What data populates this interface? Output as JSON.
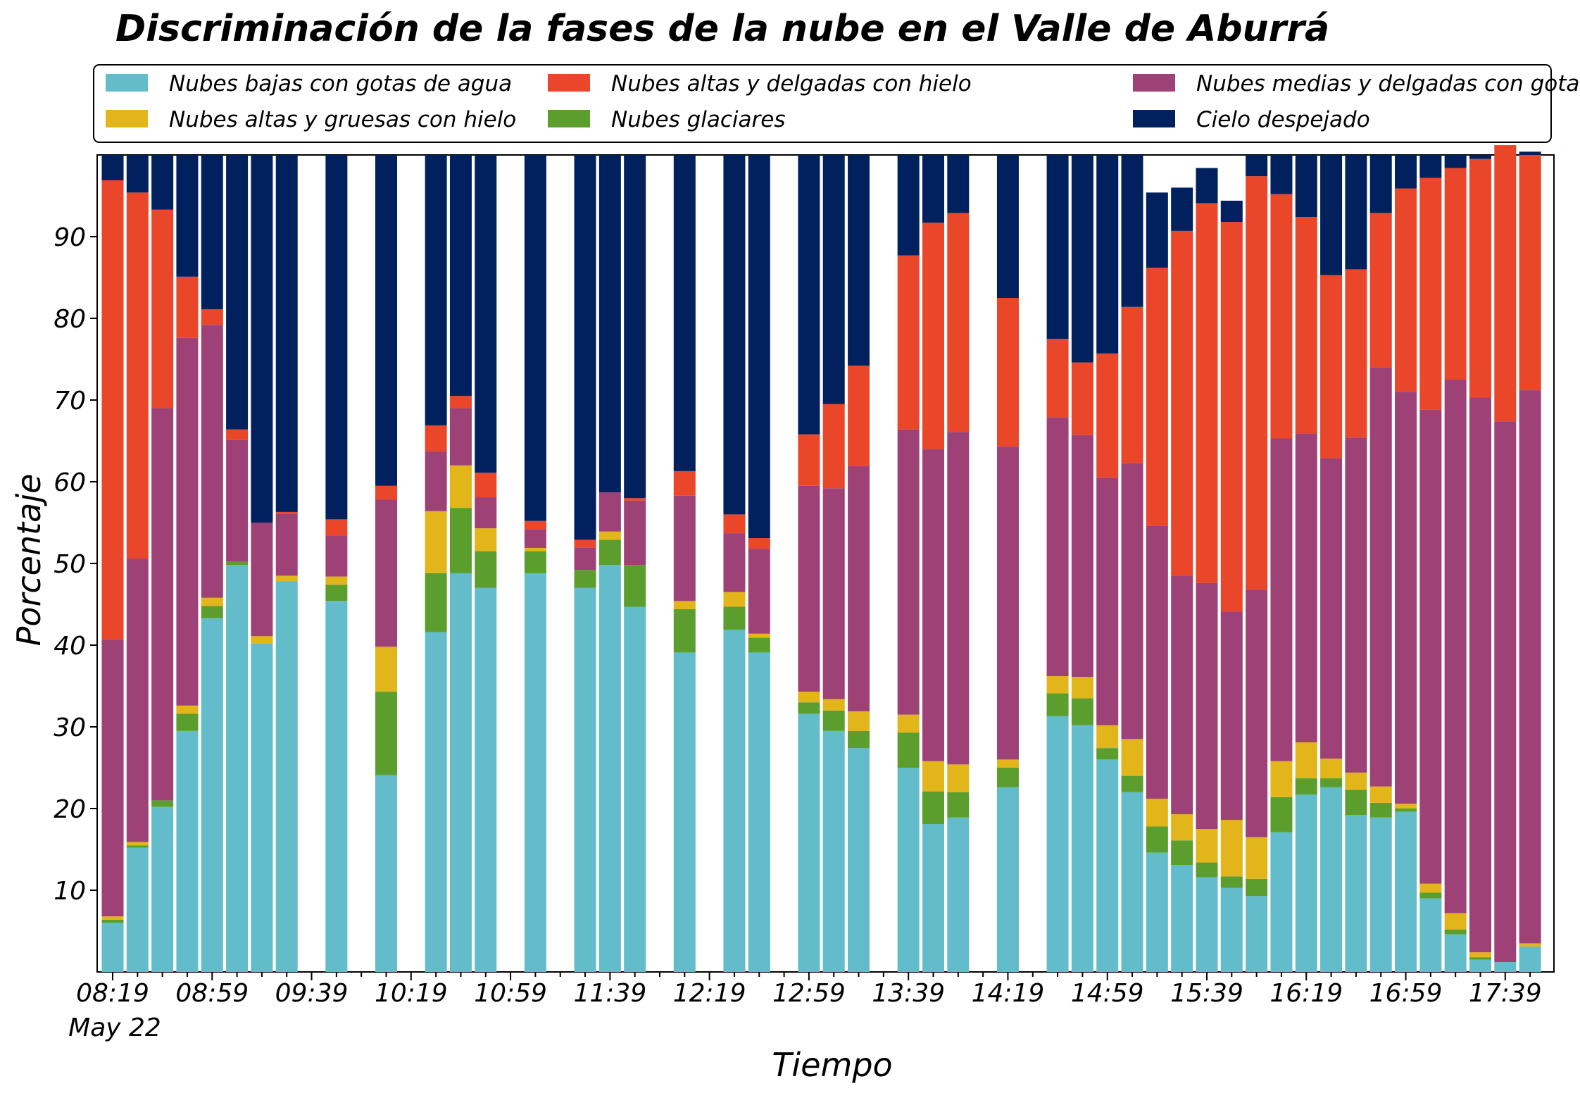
{
  "chart_data": {
    "type": "bar",
    "stacked": true,
    "title": "Discriminación de la fases de la nube en el Valle de Aburrá",
    "xlabel": "Tiempo",
    "ylabel": "Porcentaje",
    "ylim": [
      0,
      100
    ],
    "y_ticks": [
      10,
      20,
      30,
      40,
      50,
      60,
      70,
      80,
      90
    ],
    "x_tick_labels": [
      "08:19",
      "08:59",
      "09:39",
      "10:19",
      "10:59",
      "11:39",
      "12:19",
      "12:59",
      "13:39",
      "14:19",
      "14:59",
      "15:39",
      "16:19",
      "16:59",
      "17:39"
    ],
    "x_date_label": "May 22",
    "x_axis_start": "08:19",
    "bar_interval_minutes": 10,
    "grid": false,
    "legend_position": "top",
    "legend_order": [
      0,
      2,
      4,
      1,
      3,
      5
    ],
    "times": [
      "08:19",
      "08:29",
      "08:39",
      "08:49",
      "08:59",
      "09:09",
      "09:19",
      "09:29",
      "09:49",
      "10:09",
      "10:29",
      "10:39",
      "10:49",
      "11:09",
      "11:29",
      "11:39",
      "11:49",
      "12:09",
      "12:29",
      "12:39",
      "12:59",
      "13:09",
      "13:19",
      "13:39",
      "13:49",
      "13:59",
      "14:19",
      "14:39",
      "14:49",
      "14:59",
      "15:09",
      "15:19",
      "15:29",
      "15:39",
      "15:49",
      "15:59",
      "16:09",
      "16:19",
      "16:29",
      "16:39",
      "16:49",
      "16:59",
      "17:09",
      "17:19",
      "17:29",
      "17:39",
      "17:49"
    ],
    "series": [
      {
        "name": "Nubes bajas con gotas de agua",
        "color": "#63bcc9",
        "values": [
          6,
          15.2,
          20.2,
          29.5,
          43.3,
          49.8,
          40.2,
          47.8,
          45.4,
          24.1,
          41.6,
          48.8,
          47,
          48.8,
          47,
          49.8,
          44.7,
          39.1,
          41.9,
          39.1,
          31.6,
          29.5,
          27.4,
          25,
          18.1,
          18.9,
          22.6,
          31.3,
          30.2,
          26,
          22,
          14.6,
          13.1,
          11.6,
          10.3,
          9.3,
          17.1,
          21.7,
          22.6,
          19.2,
          18.9,
          19.6,
          9,
          4.6,
          1.5,
          1.2,
          3.1
        ]
      },
      {
        "name": "Nubes glaciares",
        "color": "#5b9e2e",
        "values": [
          0.4,
          0.3,
          0.8,
          2.1,
          1.5,
          0.4,
          0,
          0,
          2,
          10.2,
          7.2,
          8,
          4.5,
          2.7,
          2.2,
          3.1,
          5.1,
          5.3,
          2.8,
          1.8,
          1.4,
          2.5,
          2.1,
          4.3,
          4,
          3.1,
          2.4,
          2.8,
          3.3,
          1.4,
          2,
          3.2,
          3,
          1.8,
          1.4,
          2.1,
          4.3,
          2,
          1.1,
          3.1,
          1.8,
          0.4,
          0.7,
          0.6,
          0.3,
          0,
          0
        ]
      },
      {
        "name": "Nubes altas y gruesas con hielo",
        "color": "#e2b51b",
        "values": [
          0.4,
          0.4,
          0,
          1,
          1,
          0,
          0.9,
          0.7,
          1,
          5.5,
          7.6,
          5.2,
          2.8,
          0.4,
          0,
          1,
          0,
          1,
          1.8,
          0.5,
          1.3,
          1.4,
          2.4,
          2.2,
          3.7,
          3.4,
          1,
          2.1,
          2.6,
          2.8,
          4.5,
          3.4,
          3.2,
          4.1,
          6.9,
          5.1,
          4.4,
          4.4,
          2.4,
          2.1,
          2,
          0.6,
          1.1,
          2,
          0.6,
          0,
          0.4
        ]
      },
      {
        "name": "Nubes medias y delgadas con gotas de agua",
        "color": "#9e4177",
        "values": [
          33.9,
          34.7,
          48,
          45,
          33.4,
          14.9,
          13.9,
          7.6,
          5,
          18,
          7.3,
          7,
          3.8,
          2.3,
          2.7,
          4.8,
          7.9,
          12.9,
          7.2,
          10.4,
          25.2,
          25.8,
          30,
          34.9,
          38.2,
          40.7,
          38.3,
          31.7,
          29.6,
          30.3,
          33.8,
          33.4,
          29.2,
          30.1,
          25.5,
          30.3,
          39.5,
          37.8,
          36.8,
          41,
          51.3,
          50.4,
          58,
          65.3,
          67.9,
          66.2,
          67.7
        ]
      },
      {
        "name": "Nubes altas y delgadas con hielo",
        "color": "#e9462a",
        "values": [
          56.2,
          44.8,
          24.3,
          7.5,
          1.9,
          1.3,
          0,
          0.2,
          2,
          1.7,
          3.2,
          1.5,
          3,
          1,
          1,
          0,
          0.3,
          3,
          2.3,
          1.3,
          6.3,
          10.3,
          12.3,
          21.3,
          27.7,
          26.8,
          18.2,
          9.6,
          8.9,
          15.2,
          19.1,
          31.6,
          42.2,
          46.5,
          47.7,
          50.6,
          29.9,
          26.5,
          22.4,
          20.6,
          18.9,
          24.9,
          28.4,
          25.9,
          29.2,
          33.8,
          28.8
        ]
      },
      {
        "name": "Cielo despejado",
        "color": "#01215e",
        "values": [
          3.1,
          4.6,
          6.7,
          14.9,
          18.9,
          33.6,
          45,
          43.7,
          44.6,
          40.5,
          33.1,
          29.5,
          38.9,
          44.8,
          47.1,
          41.3,
          42,
          38.7,
          44,
          46.9,
          34.2,
          30.5,
          25.8,
          12.3,
          8.3,
          7.1,
          17.5,
          22.5,
          25.4,
          24.3,
          18.6,
          9.2,
          5.3,
          4.3,
          2.6,
          2.6,
          4.8,
          7.6,
          14.7,
          14,
          7.1,
          4.1,
          2.8,
          1.6,
          0.5,
          0,
          0.4
        ]
      }
    ]
  }
}
